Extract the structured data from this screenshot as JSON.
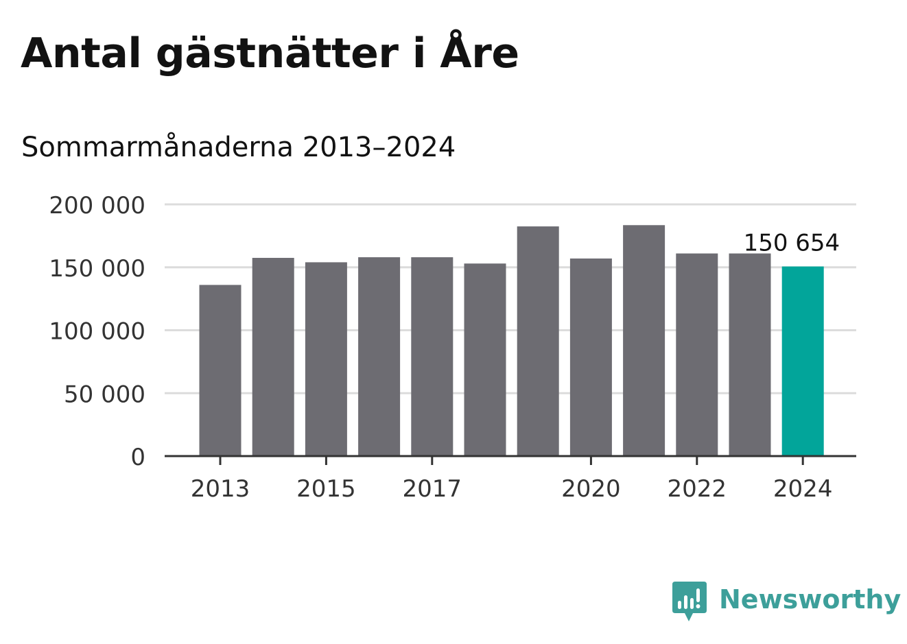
{
  "chart_data": {
    "type": "bar",
    "title": "Antal gästnätter i Åre",
    "subtitle": "Sommarmånaderna 2013–2024",
    "xlabel": "",
    "ylabel": "",
    "categories": [
      "2013",
      "2014",
      "2015",
      "2016",
      "2017",
      "2018",
      "2019",
      "2020",
      "2021",
      "2022",
      "2023",
      "2024"
    ],
    "x_tick_labels": [
      "2013",
      "2015",
      "2017",
      "2020",
      "2022",
      "2024"
    ],
    "values": [
      136000,
      157500,
      154000,
      158000,
      158000,
      153000,
      182500,
      157000,
      183500,
      161000,
      161000,
      150654
    ],
    "ylim": [
      0,
      200000
    ],
    "y_ticks": [
      0,
      50000,
      100000,
      150000,
      200000
    ],
    "y_tick_labels": [
      "0",
      "50 000",
      "100 000",
      "150 000",
      "200 000"
    ],
    "bar_color": "#6d6c72",
    "highlight_color": "#02a59a",
    "highlight_index": 11,
    "annotation": {
      "index": 11,
      "label": "150 654"
    },
    "grid": true,
    "legend": "none"
  },
  "brand": {
    "name": "Newsworthy",
    "icon": "newsworthy-logo-icon",
    "color": "#3d9f9a"
  }
}
